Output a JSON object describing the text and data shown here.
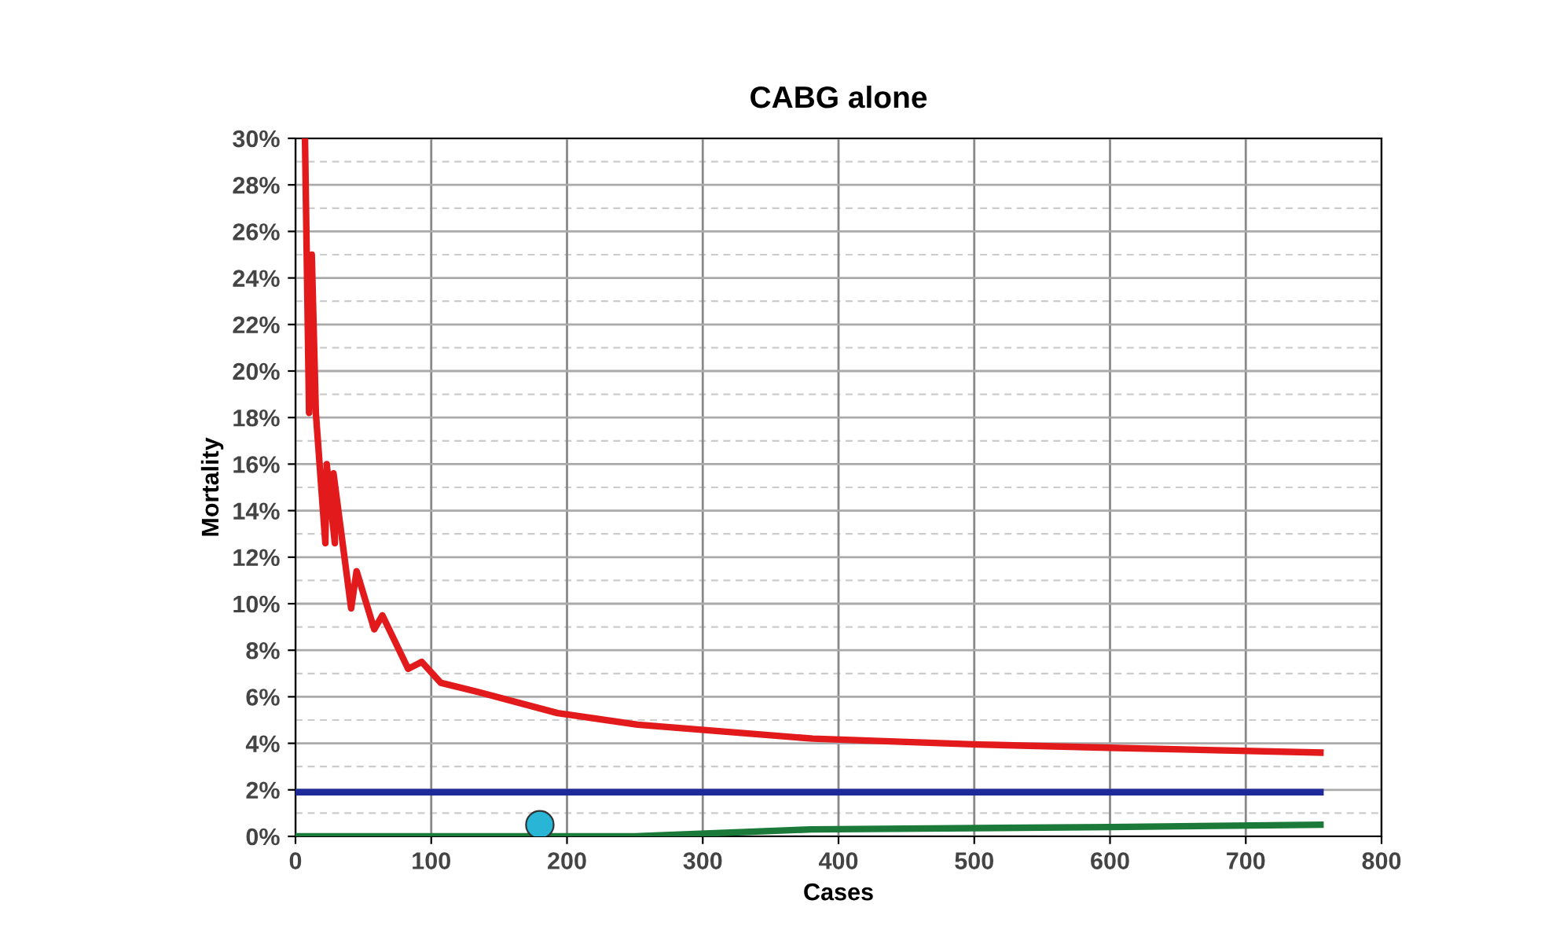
{
  "chart_data": {
    "type": "line",
    "title": "CABG alone",
    "xlabel": "Cases",
    "ylabel": "Mortality",
    "xlim": [
      0,
      800
    ],
    "xticks": [
      0,
      100,
      200,
      300,
      400,
      500,
      600,
      700,
      800
    ],
    "ylim": [
      0,
      30
    ],
    "yticks": [
      {
        "value": 0,
        "label": "0%"
      },
      {
        "value": 2,
        "label": "2%"
      },
      {
        "value": 4,
        "label": "4%"
      },
      {
        "value": 6,
        "label": "6%"
      },
      {
        "value": 8,
        "label": "8%"
      },
      {
        "value": 10,
        "label": "10%"
      },
      {
        "value": 12,
        "label": "12%"
      },
      {
        "value": 14,
        "label": "14%"
      },
      {
        "value": 16,
        "label": "16%"
      },
      {
        "value": 18,
        "label": "18%"
      },
      {
        "value": 20,
        "label": "20%"
      },
      {
        "value": 22,
        "label": "22%"
      },
      {
        "value": 24,
        "label": "24%"
      },
      {
        "value": 26,
        "label": "26%"
      },
      {
        "value": 28,
        "label": "28%"
      },
      {
        "value": 30,
        "label": "30%"
      }
    ],
    "grid": true,
    "legend": false,
    "series": [
      {
        "color": "#e31a1c",
        "x": [
          7,
          10,
          12,
          15,
          22,
          23,
          29,
          28,
          41,
          45,
          58,
          64,
          83,
          93,
          107,
          135,
          193,
          252,
          381,
          503,
          605,
          755
        ],
        "values": [
          30,
          18.2,
          25.0,
          18.2,
          12.6,
          16.0,
          12.6,
          15.6,
          9.8,
          11.4,
          8.9,
          9.5,
          7.2,
          7.5,
          6.6,
          6.2,
          5.3,
          4.8,
          4.2,
          3.95,
          3.8,
          3.6
        ]
      },
      {
        "color": "#1f2a9a",
        "x": [
          0,
          755
        ],
        "values": [
          1.9,
          1.9
        ]
      },
      {
        "color": "#1b7a3a",
        "x": [
          0,
          250,
          380,
          600,
          755
        ],
        "values": [
          0,
          0,
          0.3,
          0.4,
          0.5
        ]
      },
      {
        "type": "scatter",
        "color": "#29b6d6",
        "x": [
          180
        ],
        "values": [
          0.5
        ]
      }
    ]
  }
}
